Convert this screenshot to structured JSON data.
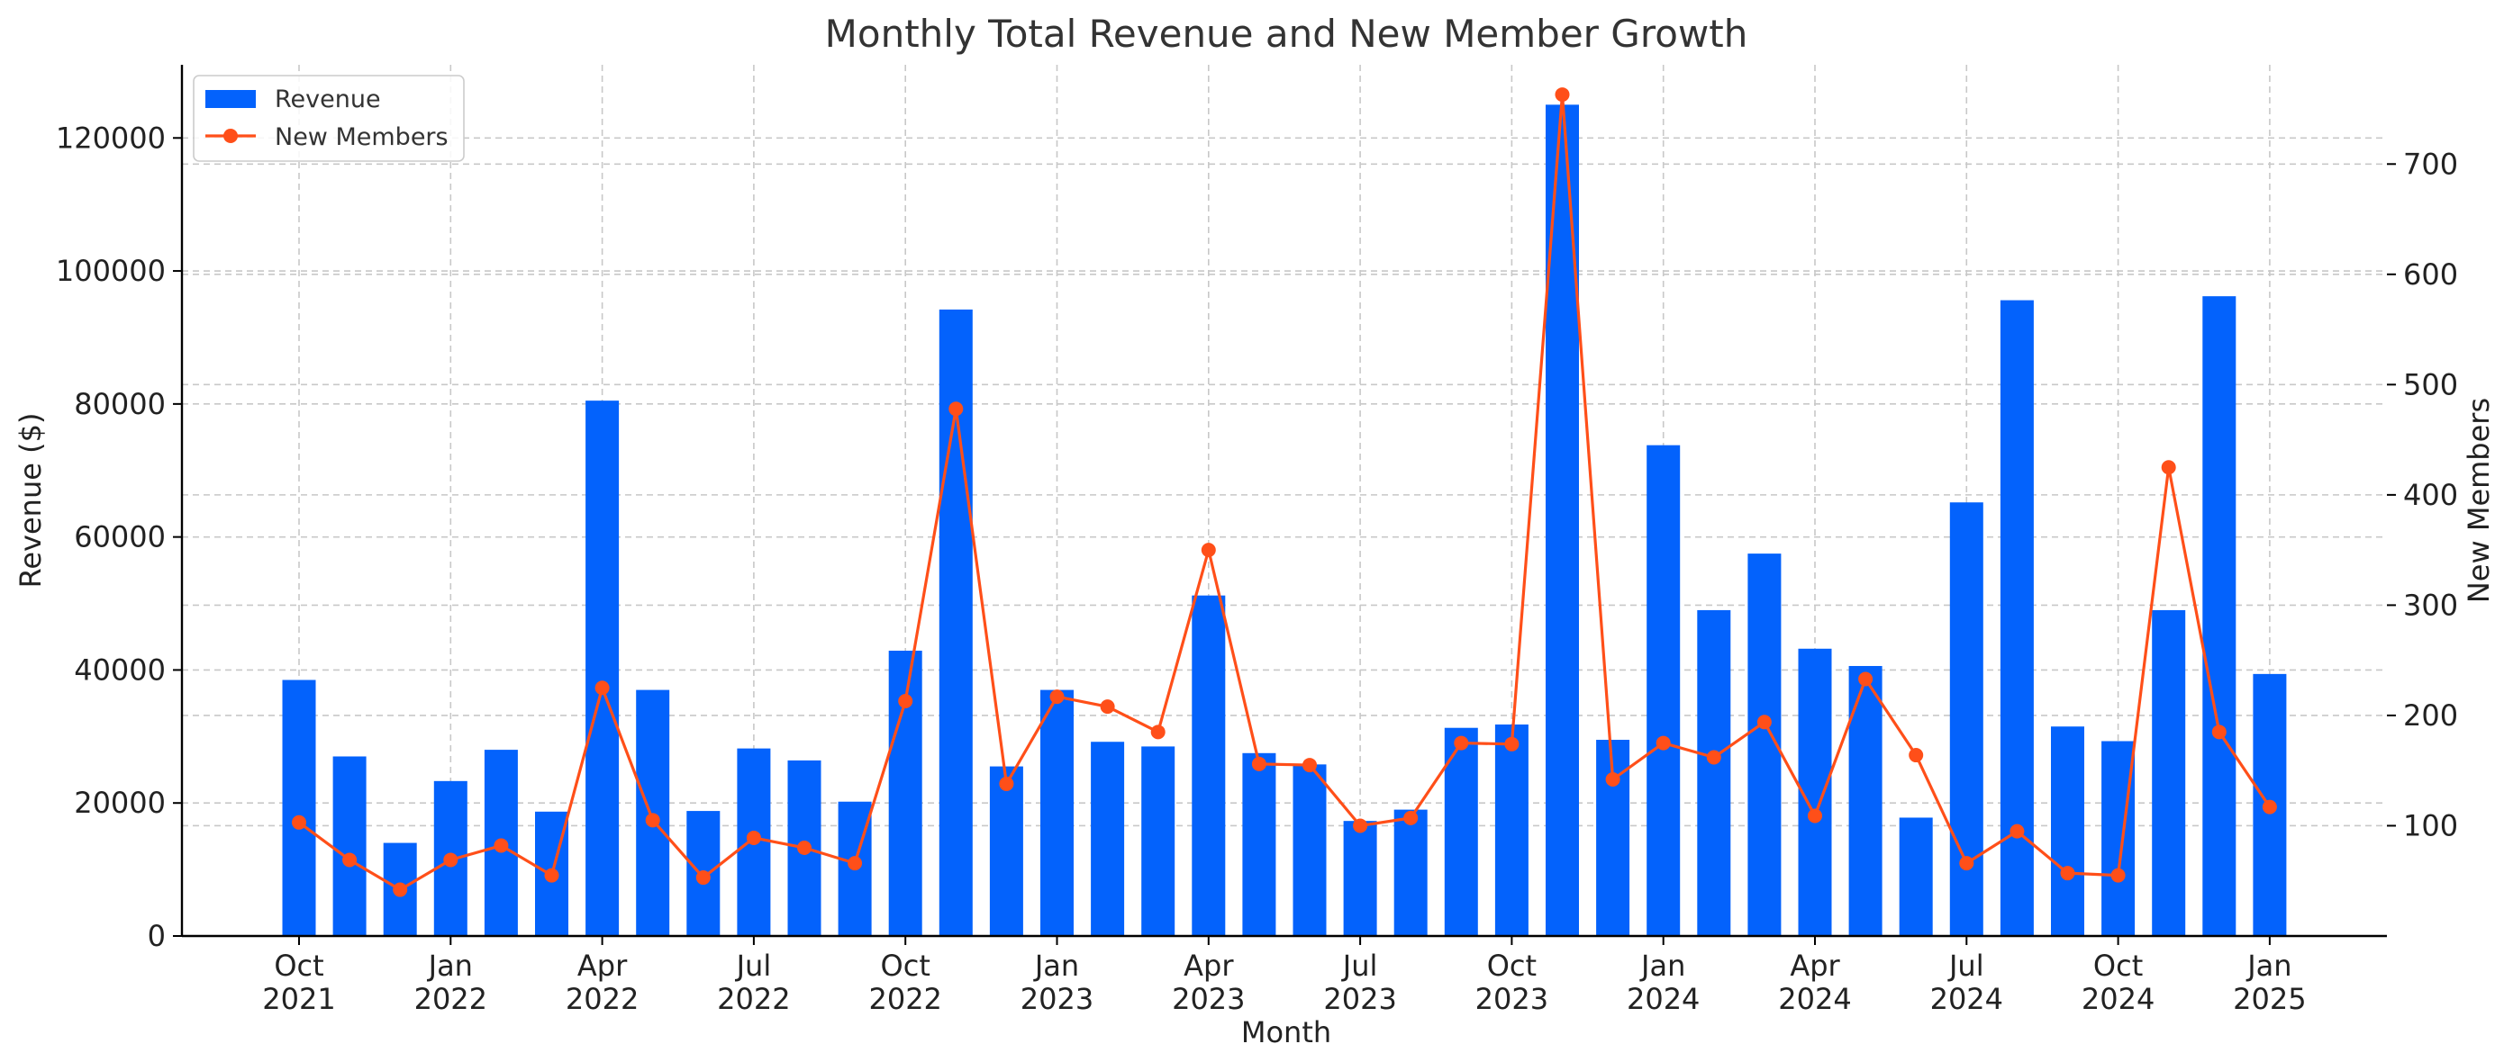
{
  "chart_data": {
    "type": "bar",
    "title": "Monthly Total Revenue and New Member Growth",
    "xlabel": "Month",
    "ylabel": "Revenue ($)",
    "y2label": "New Members",
    "ylim": [
      0,
      131000
    ],
    "y2lim": [
      0,
      790
    ],
    "grid": true,
    "legend_position": "top-left",
    "x_ticks": [
      {
        "index": 0,
        "label": [
          "Oct",
          "2021"
        ]
      },
      {
        "index": 3,
        "label": [
          "Jan",
          "2022"
        ]
      },
      {
        "index": 6,
        "label": [
          "Apr",
          "2022"
        ]
      },
      {
        "index": 9,
        "label": [
          "Jul",
          "2022"
        ]
      },
      {
        "index": 12,
        "label": [
          "Oct",
          "2022"
        ]
      },
      {
        "index": 15,
        "label": [
          "Jan",
          "2023"
        ]
      },
      {
        "index": 18,
        "label": [
          "Apr",
          "2023"
        ]
      },
      {
        "index": 21,
        "label": [
          "Jul",
          "2023"
        ]
      },
      {
        "index": 24,
        "label": [
          "Oct",
          "2023"
        ]
      },
      {
        "index": 27,
        "label": [
          "Jan",
          "2024"
        ]
      },
      {
        "index": 30,
        "label": [
          "Apr",
          "2024"
        ]
      },
      {
        "index": 33,
        "label": [
          "Jul",
          "2024"
        ]
      },
      {
        "index": 36,
        "label": [
          "Oct",
          "2024"
        ]
      },
      {
        "index": 39,
        "label": [
          "Jan",
          "2025"
        ]
      }
    ],
    "y_ticks": [
      0,
      20000,
      40000,
      60000,
      80000,
      100000,
      120000
    ],
    "y2_ticks": [
      100,
      200,
      300,
      400,
      500,
      600,
      700
    ],
    "categories": [
      "2021-10",
      "2021-11",
      "2021-12",
      "2022-01",
      "2022-02",
      "2022-03",
      "2022-04",
      "2022-05",
      "2022-06",
      "2022-07",
      "2022-08",
      "2022-09",
      "2022-10",
      "2022-11",
      "2022-12",
      "2023-01",
      "2023-02",
      "2023-03",
      "2023-04",
      "2023-05",
      "2023-06",
      "2023-07",
      "2023-08",
      "2023-09",
      "2023-10",
      "2023-11",
      "2023-12",
      "2024-01",
      "2024-02",
      "2024-03",
      "2024-04",
      "2024-05",
      "2024-06",
      "2024-07",
      "2024-08",
      "2024-09",
      "2024-10",
      "2024-11",
      "2024-12",
      "2025-01"
    ],
    "series": [
      {
        "name": "Revenue",
        "kind": "bar",
        "axis": "left",
        "color": "#0362fc",
        "values": [
          38500,
          27000,
          14000,
          23300,
          28000,
          18700,
          80500,
          37000,
          18800,
          28200,
          26400,
          20200,
          42900,
          94200,
          25500,
          37000,
          29200,
          28500,
          51200,
          27500,
          25800,
          17300,
          19000,
          31300,
          31800,
          125000,
          29500,
          73800,
          49000,
          57500,
          43200,
          40600,
          17800,
          65200,
          95600,
          31500,
          29300,
          49000,
          96200,
          39400
        ]
      },
      {
        "name": "New Members",
        "kind": "line",
        "axis": "right",
        "color": "#ff4f19",
        "values": [
          103,
          69,
          42,
          69,
          82,
          55,
          225,
          105,
          53,
          89,
          80,
          66,
          213,
          478,
          138,
          217,
          208,
          185,
          350,
          156,
          155,
          100,
          107,
          175,
          174,
          763,
          142,
          175,
          162,
          194,
          109,
          233,
          164,
          66,
          95,
          57,
          55,
          425,
          185,
          117
        ]
      }
    ]
  }
}
